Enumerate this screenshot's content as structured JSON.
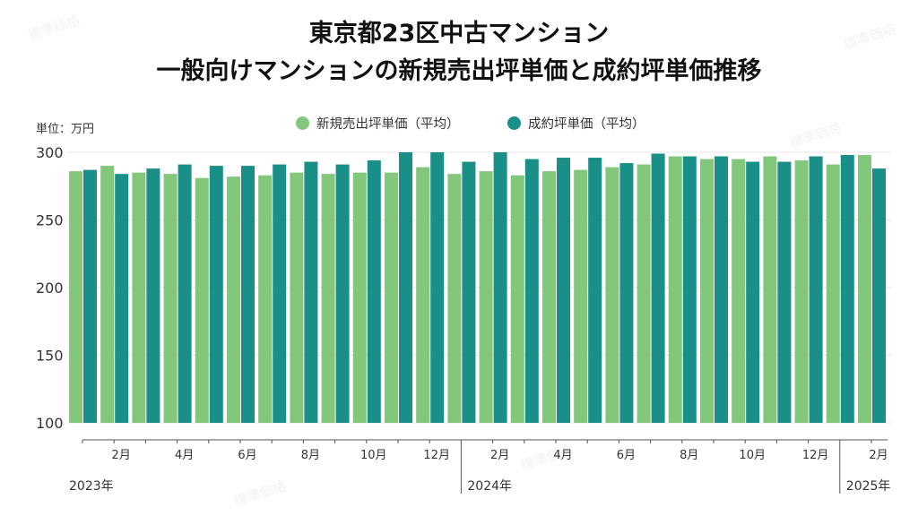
{
  "chart_data": {
    "type": "bar",
    "title": [
      "東京都23区中古マンション",
      "一般向けマンションの新規売出坪単価と成約坪単価推移"
    ],
    "unit_label": "単位：万円",
    "ylim": [
      100,
      300
    ],
    "yticks": [
      100,
      150,
      200,
      250,
      300
    ],
    "categories": [
      "2023-01",
      "2023-02",
      "2023-03",
      "2023-04",
      "2023-05",
      "2023-06",
      "2023-07",
      "2023-08",
      "2023-09",
      "2023-10",
      "2023-11",
      "2023-12",
      "2024-01",
      "2024-02",
      "2024-03",
      "2024-04",
      "2024-05",
      "2024-06",
      "2024-07",
      "2024-08",
      "2024-09",
      "2024-10",
      "2024-11",
      "2024-12",
      "2025-01",
      "2025-02"
    ],
    "tick_labels": [
      "",
      "2月",
      "",
      "4月",
      "",
      "6月",
      "",
      "8月",
      "",
      "10月",
      "",
      "12月",
      "",
      "2月",
      "",
      "4月",
      "",
      "6月",
      "",
      "8月",
      "",
      "10月",
      "",
      "12月",
      "",
      "2月"
    ],
    "year_labels": [
      {
        "label": "2023年",
        "index": 0
      },
      {
        "label": "2024年",
        "index": 12
      },
      {
        "label": "2025年",
        "index": 24
      }
    ],
    "series": [
      {
        "name": "新規売出坪単価（平均）",
        "color": "#82c77c",
        "values": [
          286,
          290,
          285,
          284,
          281,
          282,
          283,
          285,
          284,
          285,
          285,
          289,
          284,
          286,
          283,
          286,
          287,
          289,
          291,
          297,
          295,
          295,
          297,
          294,
          291,
          298
        ]
      },
      {
        "name": "成約坪単価（平均）",
        "color": "#198f88",
        "values": [
          287,
          284,
          288,
          291,
          290,
          290,
          291,
          293,
          291,
          294,
          300,
          300,
          293,
          300,
          295,
          296,
          296,
          292,
          299,
          297,
          297,
          293,
          293,
          297,
          298,
          288
        ]
      }
    ]
  },
  "watermark": "標準価格"
}
